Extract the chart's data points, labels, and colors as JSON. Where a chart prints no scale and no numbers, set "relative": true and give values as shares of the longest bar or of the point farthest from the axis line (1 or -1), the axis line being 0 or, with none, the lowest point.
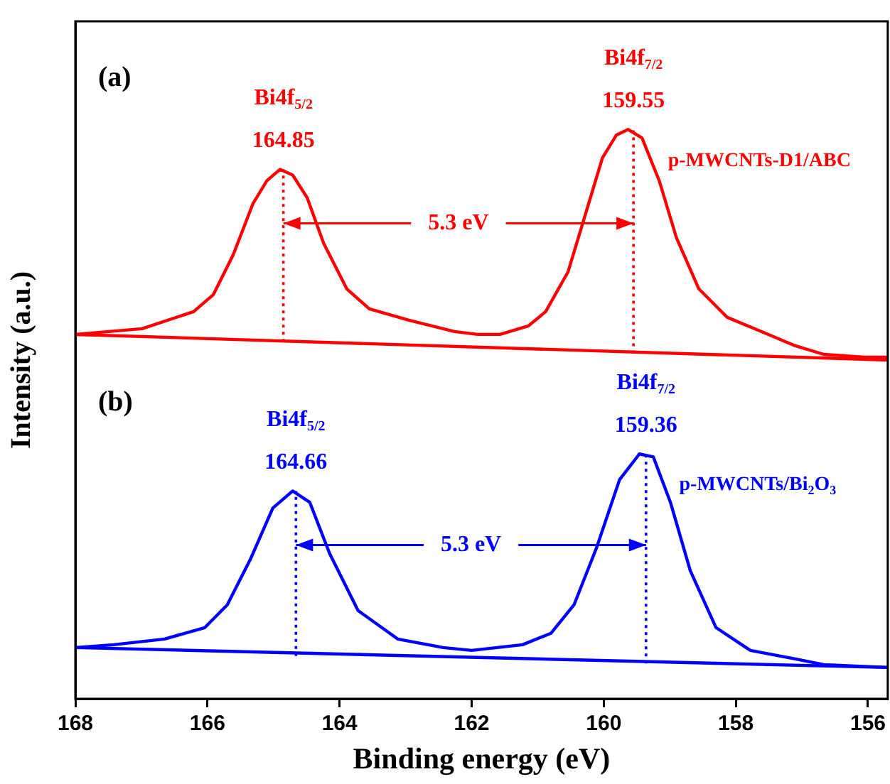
{
  "chart_data": {
    "type": "line",
    "relative": true,
    "xlabel": "Binding energy (eV)",
    "ylabel": "Intensity (a.u.)",
    "xlim": [
      168,
      155.7
    ],
    "xticks": [
      168,
      166,
      164,
      162,
      160,
      158,
      156
    ],
    "marker": "none",
    "line_style": "solid",
    "legend": false,
    "series": [
      {
        "name": "p-MWCNTs-D1/ABC",
        "color": "#ff0000",
        "x": [
          168,
          166.99,
          166.21,
          165.91,
          165.61,
          165.31,
          165.1,
          164.9,
          164.71,
          164.49,
          164.24,
          163.89,
          163.55,
          162.95,
          162.26,
          161.91,
          161.57,
          161.14,
          160.88,
          160.54,
          160.28,
          160.02,
          159.81,
          159.63,
          159.42,
          159.16,
          158.9,
          158.56,
          158.13,
          157.61,
          157.1,
          156.67,
          156.06,
          155.7
        ],
        "values": [
          0.64,
          0.65,
          0.68,
          0.71,
          0.78,
          0.87,
          0.91,
          0.93,
          0.92,
          0.88,
          0.8,
          0.72,
          0.685,
          0.665,
          0.645,
          0.64,
          0.64,
          0.655,
          0.68,
          0.75,
          0.85,
          0.95,
          0.99,
          1.0,
          0.985,
          0.91,
          0.81,
          0.72,
          0.67,
          0.645,
          0.62,
          0.605,
          0.6,
          0.6
        ]
      },
      {
        "color": "#ff0000",
        "x": [
          168,
          155.7
        ],
        "values": [
          0.64,
          0.595
        ]
      },
      {
        "color": "#ff0000",
        "line_style": "dotted",
        "x": [
          164.85,
          164.85
        ],
        "values": [
          0.627,
          0.93
        ]
      },
      {
        "color": "#ff0000",
        "line_style": "dotted",
        "x": [
          159.55,
          159.55
        ],
        "values": [
          0.607,
          1.0
        ]
      },
      {
        "name": "p-MWCNTs/Bi$_{2}$O$_{3}$",
        "color": "#0000ff",
        "x": [
          168,
          167.42,
          166.65,
          166.04,
          165.7,
          165.35,
          165.01,
          164.71,
          164.45,
          164.15,
          163.72,
          163.12,
          162.43,
          162.0,
          161.23,
          160.8,
          160.45,
          160.11,
          159.76,
          159.46,
          159.25,
          158.99,
          158.69,
          158.3,
          157.78,
          157.1,
          156.67,
          155.7
        ],
        "values": [
          0.09,
          0.095,
          0.105,
          0.125,
          0.165,
          0.245,
          0.335,
          0.365,
          0.345,
          0.255,
          0.155,
          0.105,
          0.09,
          0.085,
          0.095,
          0.115,
          0.165,
          0.265,
          0.385,
          0.43,
          0.425,
          0.345,
          0.225,
          0.125,
          0.085,
          0.07,
          0.06,
          0.055
        ]
      },
      {
        "color": "#0000ff",
        "x": [
          168,
          155.7
        ],
        "values": [
          0.09,
          0.055
        ]
      },
      {
        "color": "#0000ff",
        "line_style": "dotted",
        "x": [
          164.66,
          164.66
        ],
        "values": [
          0.075,
          0.365
        ]
      },
      {
        "color": "#0000ff",
        "line_style": "dotted",
        "x": [
          159.36,
          159.36
        ],
        "values": [
          0.062,
          0.43
        ]
      }
    ],
    "annotations": [
      "(a)",
      "Bi4f$_{5/2}$",
      "164.85",
      "Bi4f$_{7/2}$",
      "159.55",
      "5.3 eV",
      "(b)",
      "Bi4f$_{5/2}$",
      "164.66",
      "Bi4f$_{7/2}$",
      "159.36",
      "5.3 eV"
    ]
  }
}
